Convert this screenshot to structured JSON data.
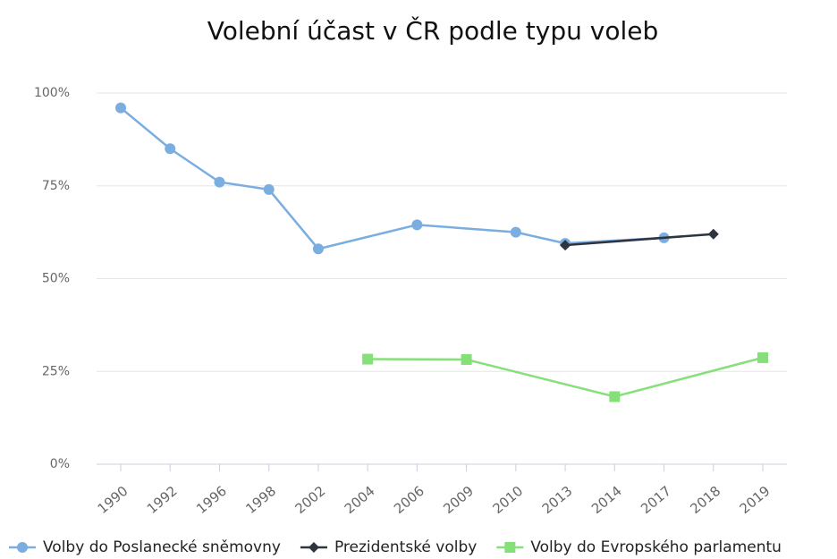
{
  "chart_data": {
    "type": "line",
    "title": "Volební účast v ČR podle typu voleb",
    "categories": [
      "1990",
      "1992",
      "1996",
      "1998",
      "2002",
      "2004",
      "2006",
      "2009",
      "2010",
      "2013",
      "2014",
      "2017",
      "2018",
      "2019"
    ],
    "series": [
      {
        "name": "Volby do Poslanecké sněmovny",
        "color": "#7aaee0",
        "marker": "circle",
        "x": [
          "1990",
          "1992",
          "1996",
          "1998",
          "2002",
          "2006",
          "2010",
          "2013",
          "2017"
        ],
        "values": [
          96,
          85,
          76,
          74,
          58,
          64.5,
          62.5,
          59.5,
          61
        ]
      },
      {
        "name": "Prezidentské volby",
        "color": "#2e3440",
        "marker": "diamond",
        "x": [
          "2013",
          "2018"
        ],
        "values": [
          59,
          62
        ]
      },
      {
        "name": "Volby do Evropského parlamentu",
        "color": "#86e07a",
        "marker": "square",
        "x": [
          "2004",
          "2009",
          "2014",
          "2019"
        ],
        "values": [
          28.3,
          28.2,
          18.2,
          28.7
        ]
      }
    ],
    "ylim": [
      0,
      100
    ],
    "yticks": [
      {
        "value": 0,
        "label": "0%"
      },
      {
        "value": 25,
        "label": "25%"
      },
      {
        "value": 50,
        "label": "50%"
      },
      {
        "value": 75,
        "label": "75%"
      },
      {
        "value": 100,
        "label": "100%"
      }
    ],
    "grid": true,
    "legend": "bottom"
  }
}
